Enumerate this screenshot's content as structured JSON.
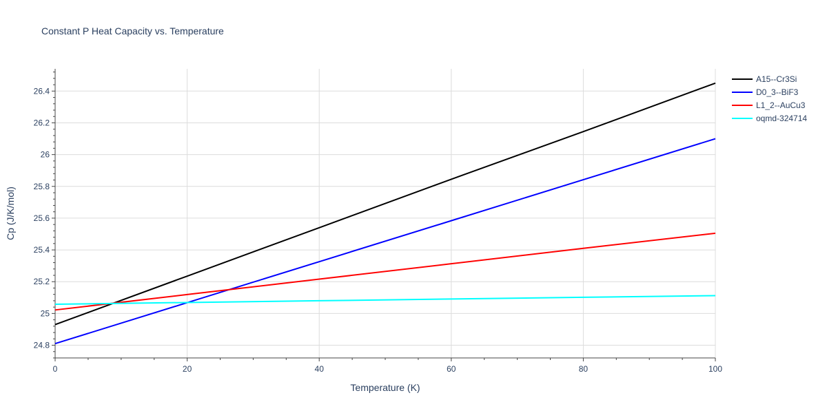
{
  "chart_data": {
    "type": "line",
    "title": "Constant P Heat Capacity vs. Temperature",
    "xlabel": "Temperature (K)",
    "ylabel": "Cp (J/K/mol)",
    "xlim": [
      0,
      100
    ],
    "ylim": [
      24.72,
      26.54
    ],
    "x_ticks": [
      0,
      20,
      40,
      60,
      80,
      100
    ],
    "x_tick_labels": [
      "0",
      "20",
      "40",
      "60",
      "80",
      "100"
    ],
    "y_ticks": [
      24.8,
      25,
      25.2,
      25.4,
      25.6,
      25.8,
      26,
      26.2,
      26.4
    ],
    "y_tick_labels": [
      "24.8",
      "25",
      "25.2",
      "25.4",
      "25.6",
      "25.8",
      "26",
      "26.2",
      "26.4"
    ],
    "grid": true,
    "legend_position": "top-right-outside",
    "series": [
      {
        "name": "A15--Cr3Si",
        "color": "#000000",
        "x": [
          0,
          20,
          40,
          60,
          80,
          100
        ],
        "values": [
          24.93,
          25.235,
          25.54,
          25.845,
          26.145,
          26.45
        ]
      },
      {
        "name": "D0_3--BiF3",
        "color": "#0000ff",
        "x": [
          0,
          20,
          40,
          60,
          80,
          100
        ],
        "values": [
          24.81,
          25.068,
          25.326,
          25.584,
          25.842,
          26.1
        ]
      },
      {
        "name": "L1_2--AuCu3",
        "color": "#ff0000",
        "x": [
          0,
          20,
          40,
          60,
          80,
          100
        ],
        "values": [
          25.022,
          25.119,
          25.216,
          25.313,
          25.41,
          25.505
        ]
      },
      {
        "name": "oqmd-324714",
        "color": "#00ffff",
        "x": [
          0,
          20,
          40,
          60,
          80,
          100
        ],
        "values": [
          25.058,
          25.069,
          25.08,
          25.091,
          25.102,
          25.112
        ]
      }
    ]
  }
}
